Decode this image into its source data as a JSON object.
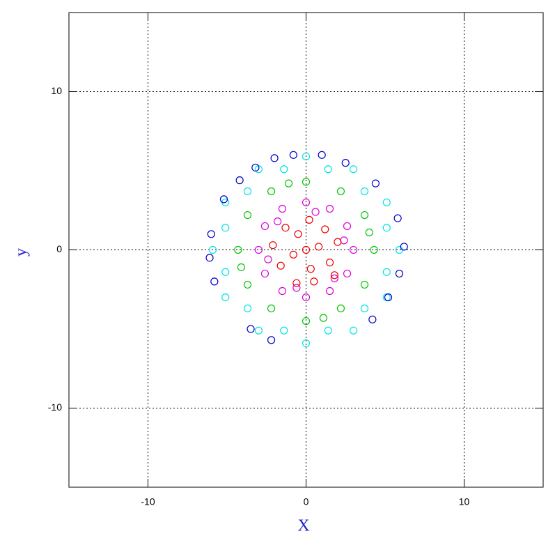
{
  "chart_data": {
    "type": "scatter",
    "x_label": "X",
    "y_label": "y",
    "xlim": [
      -15,
      15
    ],
    "ylim": [
      -15,
      15
    ],
    "xticks": [
      -10,
      0,
      10
    ],
    "yticks": [
      -10,
      0,
      10
    ],
    "grid": true,
    "series": [
      {
        "color": "#00e5e5",
        "x": [
          5.1,
          3.7,
          1.4,
          -1.4,
          -3.7,
          -5.1,
          -5.1,
          -3.7,
          -1.4,
          1.4,
          3.7,
          5.1,
          5.9,
          5.1,
          3.0,
          0,
          -3.0,
          -5.1,
          -5.9,
          -5.1,
          -3.0,
          0,
          3.0,
          5.1
        ],
        "y": [
          1.4,
          3.7,
          5.1,
          5.1,
          3.7,
          1.4,
          -1.4,
          -3.7,
          -5.1,
          -5.1,
          -3.7,
          -1.4,
          0,
          3.0,
          5.1,
          5.9,
          5.1,
          3.0,
          0,
          -3.0,
          -5.1,
          -5.9,
          -5.1,
          -3.0
        ]
      },
      {
        "color": "#00c800",
        "x": [
          4.3,
          3.7,
          2.2,
          0,
          -2.2,
          -3.7,
          -4.3,
          -3.7,
          -2.2,
          0,
          2.2,
          3.7,
          4.0,
          -1.1,
          -4.1,
          1.1
        ],
        "y": [
          0,
          2.2,
          3.7,
          4.3,
          3.7,
          2.2,
          0,
          -2.2,
          -3.7,
          -4.5,
          -3.7,
          -2.2,
          1.1,
          4.2,
          -1.1,
          -4.3
        ]
      },
      {
        "color": "#dd00dd",
        "x": [
          3,
          2.6,
          1.5,
          0,
          -1.5,
          -2.6,
          -3,
          -2.6,
          -1.5,
          0,
          1.5,
          2.6,
          2.4,
          0.6,
          -1.8,
          -2.4,
          -0.6,
          1.8
        ],
        "y": [
          0,
          1.5,
          2.6,
          3,
          2.6,
          1.5,
          0,
          -1.5,
          -2.6,
          -3,
          -2.6,
          -1.5,
          0.6,
          2.4,
          1.8,
          -0.6,
          -2.4,
          -1.8
        ]
      },
      {
        "color": "#ee0000",
        "x": [
          0,
          0.8,
          -0.8,
          0.3,
          -0.5,
          1.5,
          -1.6,
          1.2,
          -1.3,
          0.5,
          -0.6,
          2.0,
          -2.1,
          0.2,
          1.8
        ],
        "y": [
          0,
          0.2,
          -0.3,
          -1.2,
          1.0,
          -0.8,
          -1.0,
          1.3,
          1.4,
          -2.0,
          -2.1,
          0.5,
          0.3,
          1.9,
          -1.6
        ]
      },
      {
        "color": "#0000cc",
        "x": [
          -5.2,
          -4.2,
          -3.2,
          -2.0,
          -0.8,
          1.0,
          2.5,
          4.4,
          5.8,
          6.2,
          5.9,
          5.2,
          4.2,
          -3.5,
          -2.2,
          -6.1,
          -5.8,
          -6.0
        ],
        "y": [
          3.2,
          4.4,
          5.2,
          5.8,
          6.0,
          6.0,
          5.5,
          4.2,
          2.0,
          0.2,
          -1.5,
          -3.0,
          -4.4,
          -5.0,
          -5.7,
          -0.5,
          -2.0,
          1.0
        ]
      }
    ]
  }
}
